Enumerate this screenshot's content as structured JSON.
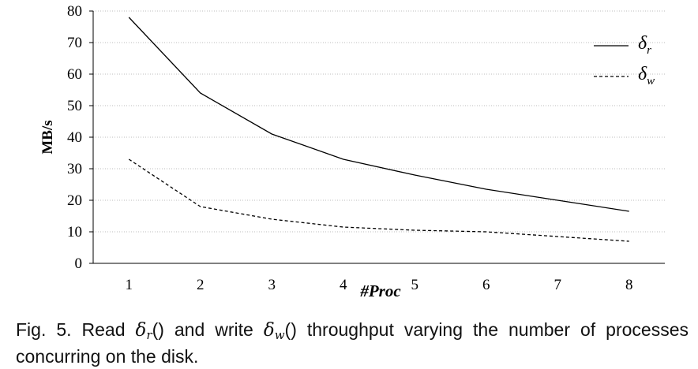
{
  "chart_data": {
    "type": "line",
    "x": [
      1,
      2,
      3,
      4,
      5,
      6,
      7,
      8
    ],
    "series": [
      {
        "name": "δr",
        "values": [
          78,
          54,
          41,
          33,
          28,
          23.5,
          20,
          16.5
        ],
        "style": "solid",
        "color": "#000000"
      },
      {
        "name": "δw",
        "values": [
          33,
          18,
          14,
          11.5,
          10.5,
          10,
          8.5,
          7
        ],
        "style": "dashed",
        "color": "#000000"
      }
    ],
    "legend": [
      {
        "symbol": "δ",
        "sub": "r"
      },
      {
        "symbol": "δ",
        "sub": "w"
      }
    ],
    "xlabel": "#Proc",
    "ylabel": "MB/s",
    "xticks": [
      "1",
      "2",
      "3",
      "4",
      "5",
      "6",
      "7",
      "8"
    ],
    "yticks": [
      "0",
      "10",
      "20",
      "30",
      "40",
      "50",
      "60",
      "70",
      "80"
    ],
    "ylim": [
      0,
      80
    ],
    "grid": true,
    "legend_position": "top-right"
  },
  "caption": {
    "prefix": "Fig. 5. Read ",
    "read_sym": "δ",
    "read_sub": "r",
    "read_paren": "()",
    "mid": " and write ",
    "write_sym": "δ",
    "write_sub": "w",
    "write_paren": "()",
    "suffix": " throughput varying the number of processes concurring on the disk."
  }
}
